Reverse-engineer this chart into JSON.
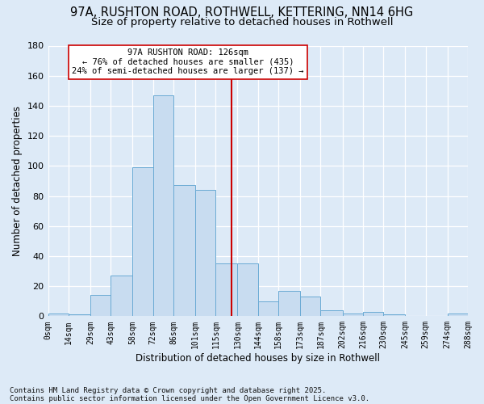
{
  "title_line1": "97A, RUSHTON ROAD, ROTHWELL, KETTERING, NN14 6HG",
  "title_line2": "Size of property relative to detached houses in Rothwell",
  "xlabel": "Distribution of detached houses by size in Rothwell",
  "ylabel": "Number of detached properties",
  "bins": [
    0,
    14,
    29,
    43,
    58,
    72,
    86,
    101,
    115,
    130,
    144,
    158,
    173,
    187,
    202,
    216,
    230,
    245,
    259,
    274,
    288
  ],
  "bin_labels": [
    "0sqm",
    "14sqm",
    "29sqm",
    "43sqm",
    "58sqm",
    "72sqm",
    "86sqm",
    "101sqm",
    "115sqm",
    "130sqm",
    "144sqm",
    "158sqm",
    "173sqm",
    "187sqm",
    "202sqm",
    "216sqm",
    "230sqm",
    "245sqm",
    "259sqm",
    "274sqm",
    "288sqm"
  ],
  "values": [
    2,
    1,
    14,
    27,
    99,
    147,
    87,
    84,
    35,
    35,
    10,
    17,
    13,
    4,
    2,
    3,
    1,
    0,
    0,
    2
  ],
  "bar_color": "#c8dcf0",
  "bar_edge_color": "#6aaad4",
  "vline_x": 126,
  "vline_color": "#cc0000",
  "annotation_text": "97A RUSHTON ROAD: 126sqm\n← 76% of detached houses are smaller (435)\n24% of semi-detached houses are larger (137) →",
  "annotation_box_facecolor": "#ffffff",
  "annotation_box_edgecolor": "#cc0000",
  "ylim_max": 180,
  "yticks": [
    0,
    20,
    40,
    60,
    80,
    100,
    120,
    140,
    160,
    180
  ],
  "bg_color": "#ddeaf7",
  "grid_color": "#ffffff",
  "footer": "Contains HM Land Registry data © Crown copyright and database right 2025.\nContains public sector information licensed under the Open Government Licence v3.0.",
  "title_fontsize": 10.5,
  "subtitle_fontsize": 9.5,
  "ylabel_fontsize": 8.5,
  "xlabel_fontsize": 8.5,
  "ytick_fontsize": 8,
  "xtick_fontsize": 7,
  "annot_fontsize": 7.5,
  "footer_fontsize": 6.5
}
